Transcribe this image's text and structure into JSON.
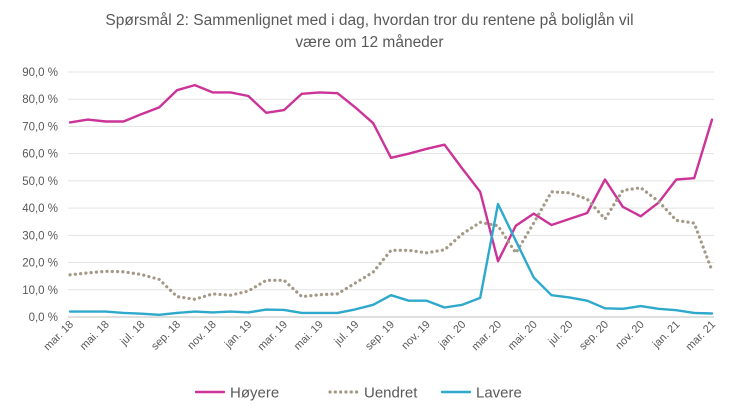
{
  "chart_data": {
    "type": "line",
    "title_line1": "Spørsmål 2: Sammenlignet  med i dag, hvordan tror du rentene på boliglån vil",
    "title_line2": "være om 12 måneder",
    "xlabel": "",
    "ylabel": "",
    "ylim": [
      0,
      90
    ],
    "y_ticks": [
      "0,0 %",
      "10,0 %",
      "20,0 %",
      "30,0 %",
      "40,0 %",
      "50,0 %",
      "60,0 %",
      "70,0 %",
      "80,0 %",
      "90,0 %"
    ],
    "x_tick_labels": [
      "mar. 18",
      "mai. 18",
      "jul. 18",
      "sep. 18",
      "nov. 18",
      "jan. 19",
      "mar. 19",
      "mai. 19",
      "jul. 19",
      "sep. 19",
      "nov. 19",
      "jan. 20",
      "mar. 20",
      "mai. 20",
      "jul. 20",
      "sep. 20",
      "nov. 20",
      "jan. 21",
      "mar. 21"
    ],
    "grid": true,
    "legend_position": "bottom",
    "series": [
      {
        "name": "Høyere",
        "color": "#cc3399",
        "style": "solid",
        "values": [
          71.5,
          72.5,
          71.8,
          71.8,
          74.5,
          77,
          83.3,
          85.2,
          82.5,
          82.5,
          81.2,
          75,
          76,
          82,
          82.5,
          82.2,
          77,
          71.2,
          58.5,
          60,
          61.8,
          63.3,
          54.5,
          46,
          20.5,
          33.5,
          38,
          33.8,
          36,
          38.2,
          50.5,
          40.5,
          37,
          42,
          50.5,
          51,
          72.5
        ]
      },
      {
        "name": "Uendret",
        "color": "#a39986",
        "style": "dotted",
        "values": [
          15.5,
          16.2,
          16.8,
          16.6,
          15.6,
          13.8,
          7.5,
          6.5,
          8.5,
          8.0,
          9.5,
          13.5,
          13.5,
          7.5,
          8.2,
          8.5,
          12.5,
          16.5,
          24.5,
          24.5,
          23.6,
          24.7,
          30.5,
          34.8,
          33.5,
          23.5,
          34.5,
          46,
          45.6,
          43.3,
          36,
          46.5,
          47.5,
          42.5,
          35.5,
          34.5,
          17
        ]
      },
      {
        "name": "Lavere",
        "color": "#2ea9cc",
        "style": "solid",
        "values": [
          2,
          2,
          2,
          1.5,
          1.2,
          0.8,
          1.5,
          2,
          1.7,
          2,
          1.7,
          2.7,
          2.6,
          1.5,
          1.5,
          1.5,
          2.8,
          4.5,
          8,
          6,
          6,
          3.5,
          4.5,
          7,
          41.5,
          28,
          14.5,
          8,
          7.2,
          6,
          3.2,
          3,
          4,
          3,
          2.5,
          1.5,
          1.3
        ]
      }
    ]
  }
}
